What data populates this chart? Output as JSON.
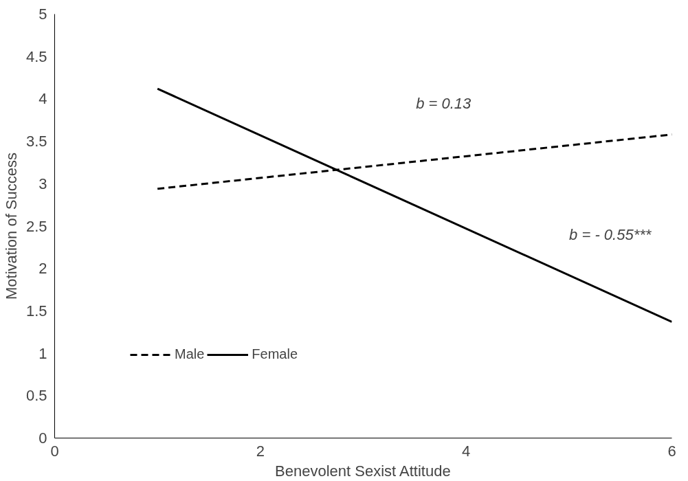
{
  "chart_data": {
    "type": "line",
    "xlabel": "Benevolent Sexist Attitude",
    "ylabel": "Motivation of Success",
    "x": [
      1,
      6
    ],
    "series": [
      {
        "name": "Male",
        "color": "#000000",
        "values": [
          2.94,
          3.58
        ],
        "line_style": "dashed"
      },
      {
        "name": "Female",
        "color": "#000000",
        "values": [
          4.12,
          1.37
        ],
        "line_style": "solid"
      }
    ],
    "xlim": [
      0,
      6
    ],
    "xticks": [
      0,
      2,
      4,
      6
    ],
    "ylim": [
      0,
      5
    ],
    "yticks": [
      0,
      0.5,
      1,
      1.5,
      2,
      2.5,
      3,
      3.5,
      4,
      4.5,
      5
    ],
    "grid": false,
    "legend": "bottom left",
    "marker": "none",
    "annotations": [
      "b = 0.13",
      "b = - 0.55***"
    ]
  }
}
